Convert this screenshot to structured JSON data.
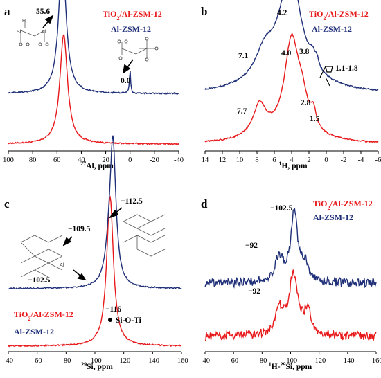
{
  "colors": {
    "red": "#e8191b",
    "blue": "#1f2f78",
    "black": "#000000",
    "al_highlight": "#e06a3a"
  },
  "chart_data": [
    {
      "panel": "a",
      "type": "line",
      "xlabel_sup": "27",
      "xlabel_main": "Al, ppm",
      "xlim": [
        100,
        -40
      ],
      "xticks": [
        100,
        80,
        60,
        40,
        20,
        0,
        -20,
        -40
      ],
      "tick_labels": [
        "100",
        "80",
        "60",
        "40",
        "20",
        "0",
        "-20",
        "-40"
      ],
      "series": [
        {
          "name": "TiO2/Al-ZSM-12",
          "legend_main": "TiO",
          "legend_sub": "2",
          "legend_tail": "/Al-ZSM-12",
          "color": "red",
          "baseline": 0.0,
          "peaks": [
            {
              "x": 54.5,
              "h": 1.0,
              "w": 3.8
            }
          ]
        },
        {
          "name": "Al-ZSM-12",
          "legend_main": "Al-ZSM-12",
          "color": "blue",
          "baseline": 0.46,
          "peaks": [
            {
              "x": 55.6,
              "h": 1.27,
              "w": 3.6
            },
            {
              "x": 0.0,
              "h": 0.22,
              "w": 0.55
            }
          ]
        }
      ],
      "annotations": [
        {
          "text": "55.6"
        },
        {
          "text": "0.0"
        }
      ]
    },
    {
      "panel": "b",
      "type": "line",
      "xlabel_sup": "1",
      "xlabel_main": "H, ppm",
      "xlim": [
        14,
        -6
      ],
      "xticks": [
        14,
        12,
        10,
        8,
        6,
        4,
        2,
        0,
        -2,
        -4,
        -6
      ],
      "tick_labels": [
        "14",
        "12",
        "10",
        "8",
        "6",
        "4",
        "2",
        "0",
        "-2",
        "-4",
        "-6"
      ],
      "series": [
        {
          "name": "TiO2/Al-ZSM-12",
          "legend_main": "TiO",
          "legend_sub": "2",
          "legend_tail": "/Al-ZSM-12",
          "color": "red",
          "baseline": 0.0,
          "peaks": [
            {
              "x": 4.0,
              "h": 0.78,
              "w": 1.0
            },
            {
              "x": 7.7,
              "h": 0.26,
              "w": 0.9
            },
            {
              "x": 2.8,
              "h": 0.2,
              "w": 0.7
            },
            {
              "x": 1.5,
              "h": 0.14,
              "w": 0.35
            }
          ]
        },
        {
          "name": "Al-ZSM-12",
          "legend_main": "Al-ZSM-12",
          "color": "blue",
          "baseline": 0.42,
          "peaks": [
            {
              "x": 4.2,
              "h": 0.85,
              "w": 1.6
            },
            {
              "x": 7.1,
              "h": 0.22,
              "w": 1.3
            },
            {
              "x": 3.8,
              "h": 0.1,
              "w": 0.6
            },
            {
              "x": 1.6,
              "h": 0.08,
              "w": 0.35
            },
            {
              "x": 1.1,
              "h": 0.07,
              "w": 0.25
            }
          ]
        }
      ],
      "annotations": [
        {
          "text": "4.2"
        },
        {
          "text": "7.1"
        },
        {
          "text": "3.8"
        },
        {
          "text": "1.1-1.8"
        },
        {
          "text": "4.0"
        },
        {
          "text": "7.7"
        },
        {
          "text": "2.8"
        },
        {
          "text": "1.5"
        }
      ]
    },
    {
      "panel": "c",
      "type": "line",
      "xlabel_sup": "29",
      "xlabel_main": "Si, ppm",
      "xlim": [
        -40,
        -160
      ],
      "xticks": [
        -40,
        -60,
        -80,
        -100,
        -120,
        -140,
        -160
      ],
      "tick_labels": [
        "-40",
        "-60",
        "-80",
        "-100",
        "-120",
        "-140",
        "-160"
      ],
      "series": [
        {
          "name": "TiO2/Al-ZSM-12",
          "legend_main": "TiO",
          "legend_sub": "2",
          "legend_tail": "/Al-ZSM-12",
          "color": "red",
          "baseline": 0.0,
          "peaks": [
            {
              "x": -110.5,
              "h": 1.35,
              "w": 2.8
            }
          ]
        },
        {
          "name": "Al-ZSM-12",
          "legend_main": "Al-ZSM-12",
          "color": "blue",
          "baseline": 0.52,
          "peaks": [
            {
              "x": -112.5,
              "h": 1.28,
              "w": 2.5
            },
            {
              "x": -109.5,
              "h": 0.2,
              "w": 3.0
            }
          ]
        }
      ],
      "annotations": [
        {
          "text": "−112.5"
        },
        {
          "text": "−109.5"
        },
        {
          "text": "−102.5"
        },
        {
          "text": "−116"
        },
        {
          "text": "Si-O-Ti"
        }
      ],
      "atom_labels": {
        "si": "Si",
        "al": "Al",
        "o": "o"
      }
    },
    {
      "panel": "d",
      "type": "line",
      "xlabel_sup1": "1",
      "xlabel_mid": "H-",
      "xlabel_sup2": "29",
      "xlabel_main": "Si, ppm",
      "xlim": [
        -40,
        -160
      ],
      "xticks": [
        -40,
        -60,
        -80,
        -100,
        -120,
        -140,
        -160
      ],
      "tick_labels": [
        "-40",
        "-60",
        "-80",
        "-100",
        "-120",
        "-140",
        "-160"
      ],
      "series": [
        {
          "name": "TiO2/Al-ZSM-12",
          "legend_main": "TiO",
          "legend_sub": "2",
          "legend_tail": "/Al-ZSM-12",
          "color": "red",
          "baseline": 0.0,
          "peaks": [
            {
              "x": -102.0,
              "h": 0.62,
              "w": 3.8
            },
            {
              "x": -92,
              "h": 0.25,
              "w": 3.5
            },
            {
              "x": -112,
              "h": 0.22,
              "w": 3.0
            }
          ]
        },
        {
          "name": "Al-ZSM-12",
          "legend_main": "Al-ZSM-12",
          "color": "blue",
          "baseline": 0.55,
          "peaks": [
            {
              "x": -102.5,
              "h": 0.72,
              "w": 2.8
            },
            {
              "x": -92,
              "h": 0.26,
              "w": 3.5
            },
            {
              "x": -110,
              "h": 0.18,
              "w": 3.0
            }
          ]
        }
      ],
      "annotations": [
        {
          "text": "−102.5"
        },
        {
          "text": "−92"
        },
        {
          "text": "−92"
        }
      ]
    }
  ]
}
